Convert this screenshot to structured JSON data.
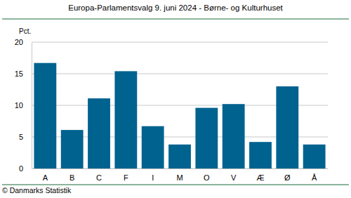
{
  "chart_data": {
    "type": "bar",
    "title": "Europa-Parlamentsvalg 9. juni 2024 - Børne- og Kulturhuset",
    "y_label": "Pct.",
    "source": "© Danmarks Statistik",
    "categories": [
      "A",
      "B",
      "C",
      "F",
      "I",
      "M",
      "O",
      "V",
      "Æ",
      "Ø",
      "Å"
    ],
    "values": [
      16.7,
      6.1,
      11.1,
      15.4,
      6.7,
      3.8,
      9.6,
      10.2,
      4.2,
      13.0,
      3.8
    ],
    "color": "#00628f",
    "ylim": [
      0,
      20
    ],
    "yticks": [
      0,
      5,
      10,
      15,
      20
    ],
    "grid": true
  }
}
